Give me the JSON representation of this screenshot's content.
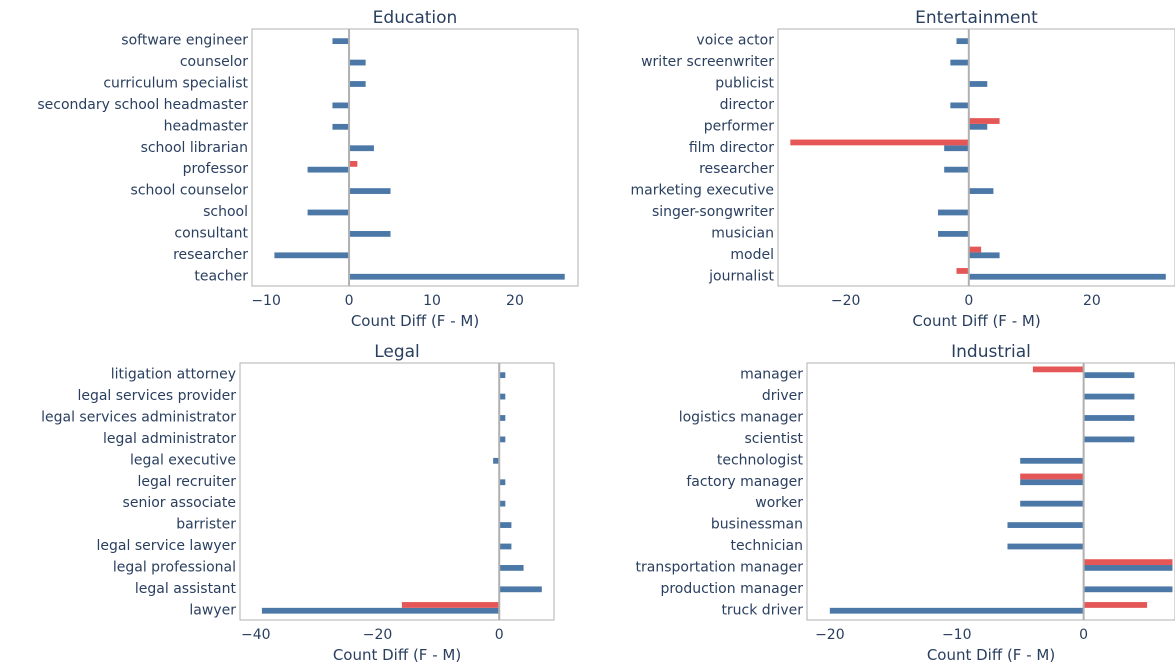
{
  "colors": {
    "series_a": "#4c78a8",
    "series_b": "#e45756",
    "frame": "#b0b0b0",
    "zero_line": "#b0b0b0"
  },
  "chart_data": [
    {
      "type": "bar",
      "orientation": "horizontal",
      "title": "Education",
      "xlabel": "Count Diff (F - M)",
      "xlim": [
        -11.7,
        27.6
      ],
      "xticks": [
        -10,
        0,
        10,
        20
      ],
      "xtick_labels": [
        "−10",
        "0",
        "10",
        "20"
      ],
      "categories": [
        "software engineer",
        "counselor",
        "curriculum specialist",
        "secondary school headmaster",
        "headmaster",
        "school librarian",
        "professor",
        "school counselor",
        "school",
        "consultant",
        "researcher",
        "teacher"
      ],
      "series": [
        {
          "values": [
            -2,
            2,
            2,
            -2,
            -2,
            3,
            -5,
            5,
            -5,
            5,
            -9,
            26
          ]
        },
        {
          "values": [
            null,
            null,
            null,
            null,
            null,
            null,
            1,
            null,
            null,
            null,
            null,
            null
          ]
        }
      ]
    },
    {
      "type": "bar",
      "orientation": "horizontal",
      "title": "Entertainment",
      "xlabel": "Count Diff (F - M)",
      "xlim": [
        -31,
        33.5
      ],
      "xticks": [
        -20,
        0,
        20
      ],
      "xtick_labels": [
        "−20",
        "0",
        "20"
      ],
      "categories": [
        "voice actor",
        "writer screenwriter",
        "publicist",
        "director",
        "performer",
        "film director",
        "researcher",
        "marketing executive",
        "singer-songwriter",
        "musician",
        "model",
        "journalist"
      ],
      "series": [
        {
          "values": [
            -2,
            -3,
            3,
            -3,
            3,
            -4,
            -4,
            4,
            -5,
            -5,
            5,
            32
          ]
        },
        {
          "values": [
            null,
            null,
            null,
            null,
            5,
            -29,
            null,
            null,
            null,
            null,
            2,
            -2
          ]
        }
      ]
    },
    {
      "type": "bar",
      "orientation": "horizontal",
      "title": "Legal",
      "xlabel": "Count Diff (F - M)",
      "xlim": [
        -42.6,
        9
      ],
      "xticks": [
        -40,
        -20,
        0
      ],
      "xtick_labels": [
        "−40",
        "−20",
        "0"
      ],
      "categories": [
        "litigation attorney",
        "legal services provider",
        "legal services administrator",
        "legal administrator",
        "legal executive",
        "legal recruiter",
        "senior associate",
        "barrister",
        "legal service lawyer",
        "legal professional",
        "legal assistant",
        "lawyer"
      ],
      "series": [
        {
          "values": [
            1,
            1,
            1,
            1,
            -1,
            1,
            1,
            2,
            2,
            4,
            7,
            -39
          ]
        },
        {
          "values": [
            null,
            null,
            null,
            null,
            null,
            null,
            null,
            null,
            null,
            null,
            null,
            -16
          ]
        }
      ]
    },
    {
      "type": "bar",
      "orientation": "horizontal",
      "title": "Industrial",
      "xlabel": "Count Diff (F - M)",
      "xlim": [
        -21.8,
        7.2
      ],
      "xticks": [
        -20,
        -10,
        0
      ],
      "xtick_labels": [
        "−20",
        "−10",
        "0"
      ],
      "categories": [
        "manager",
        "driver",
        "logistics manager",
        "scientist",
        "technologist",
        "factory manager",
        "worker",
        "businessman",
        "technician",
        "transportation manager",
        "production manager",
        "truck driver"
      ],
      "series": [
        {
          "values": [
            4,
            4,
            4,
            4,
            -5,
            -5,
            -5,
            -6,
            -6,
            7,
            7,
            -20
          ]
        },
        {
          "values": [
            -4,
            null,
            null,
            null,
            null,
            -5,
            null,
            null,
            null,
            7,
            null,
            5
          ]
        }
      ]
    }
  ]
}
